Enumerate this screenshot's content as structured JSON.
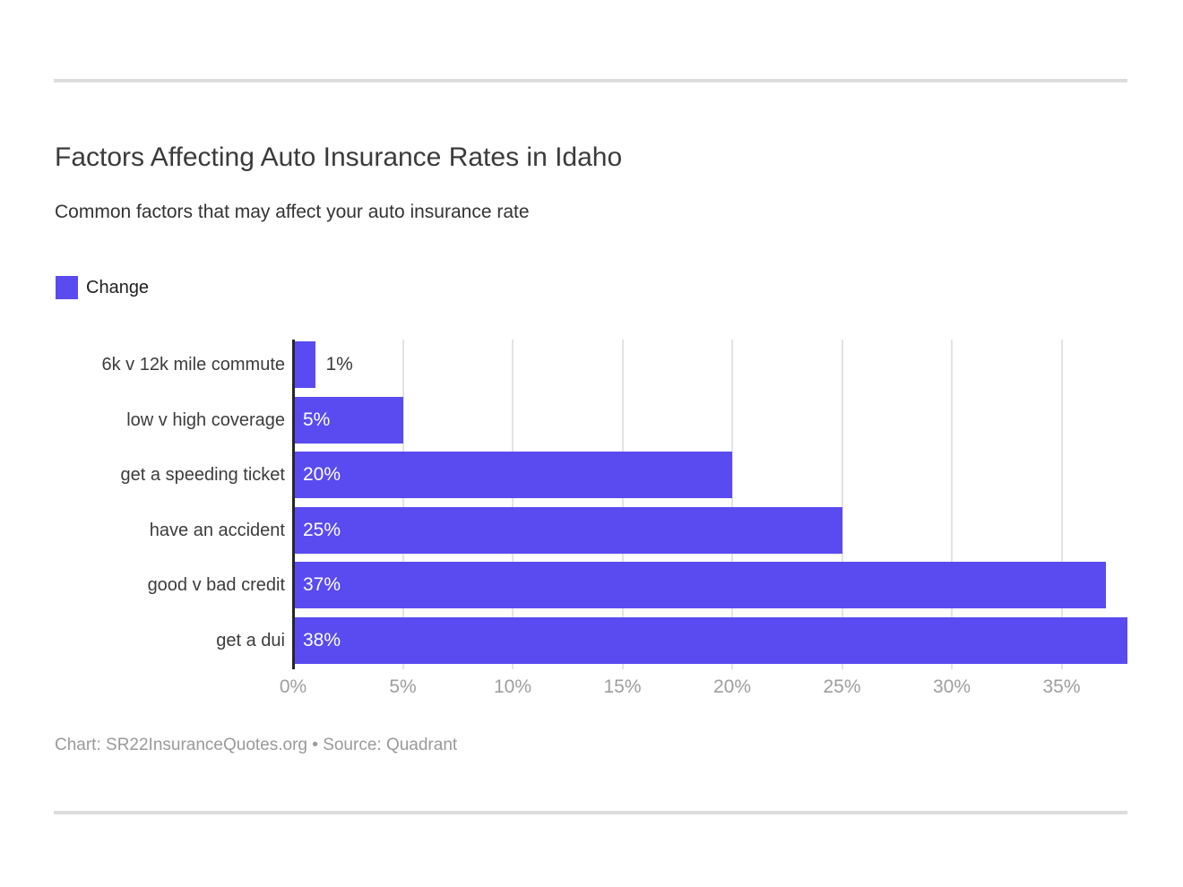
{
  "header": {
    "title": "Factors Affecting Auto Insurance Rates in Idaho",
    "subtitle": "Common factors that may affect your auto insurance rate"
  },
  "legend": {
    "label": "Change",
    "color": "#5a4bf0"
  },
  "chart_data": {
    "type": "bar",
    "orientation": "horizontal",
    "title": "Factors Affecting Auto Insurance Rates in Idaho",
    "subtitle": "Common factors that may affect your auto insurance rate",
    "series_name": "Change",
    "categories": [
      "6k v 12k mile commute",
      "low v high coverage",
      "get a speeding ticket",
      "have an accident",
      "good v bad credit",
      "get a dui"
    ],
    "values": [
      1,
      5,
      20,
      25,
      37,
      38
    ],
    "value_labels": [
      "1%",
      "5%",
      "20%",
      "25%",
      "37%",
      "38%"
    ],
    "xlabel": "",
    "ylabel": "",
    "xlim": [
      0,
      38
    ],
    "x_ticks": [
      0,
      5,
      10,
      15,
      20,
      25,
      30,
      35
    ],
    "x_tick_labels": [
      "0%",
      "5%",
      "10%",
      "15%",
      "20%",
      "25%",
      "30%",
      "35%"
    ],
    "grid": "vertical-on",
    "legend_position": "top-left",
    "bar_color": "#5a4bf0",
    "axis_line_color": "#262626",
    "gridline_color": "#e3e3e3"
  },
  "footer": {
    "text": "Chart: SR22InsuranceQuotes.org • Source: Quadrant"
  }
}
